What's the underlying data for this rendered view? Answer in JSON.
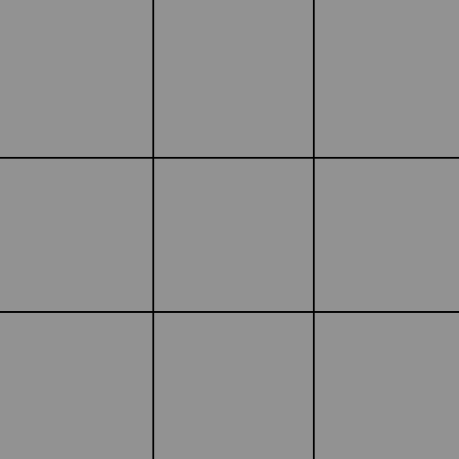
{
  "board": {
    "background_color": "#929292",
    "line_color": "#000000",
    "rows": 3,
    "columns": 3,
    "cells": [
      {
        "mark": ""
      },
      {
        "mark": ""
      },
      {
        "mark": ""
      },
      {
        "mark": ""
      },
      {
        "mark": ""
      },
      {
        "mark": ""
      },
      {
        "mark": ""
      },
      {
        "mark": ""
      },
      {
        "mark": ""
      }
    ]
  }
}
